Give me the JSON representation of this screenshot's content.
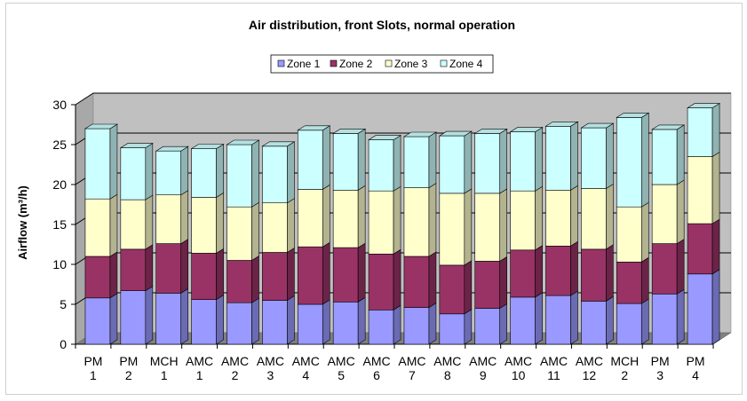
{
  "chart_data": {
    "type": "bar",
    "stacked": true,
    "style_3d": true,
    "title": "Air distribution, front Slots, normal operation",
    "ylabel": "Airflow (m³/h)",
    "xlabel": "",
    "ylim": [
      0,
      30
    ],
    "yticks": [
      0,
      5,
      10,
      15,
      20,
      25,
      30
    ],
    "grid": true,
    "legend_position": "top-center",
    "categories": [
      {
        "line1": "PM",
        "line2": "1"
      },
      {
        "line1": "PM",
        "line2": "2"
      },
      {
        "line1": "MCH",
        "line2": "1"
      },
      {
        "line1": "AMC",
        "line2": "1"
      },
      {
        "line1": "AMC",
        "line2": "2"
      },
      {
        "line1": "AMC",
        "line2": "3"
      },
      {
        "line1": "AMC",
        "line2": "4"
      },
      {
        "line1": "AMC",
        "line2": "5"
      },
      {
        "line1": "AMC",
        "line2": "6"
      },
      {
        "line1": "AMC",
        "line2": "7"
      },
      {
        "line1": "AMC",
        "line2": "8"
      },
      {
        "line1": "AMC",
        "line2": "9"
      },
      {
        "line1": "AMC",
        "line2": "10"
      },
      {
        "line1": "AMC",
        "line2": "11"
      },
      {
        "line1": "AMC",
        "line2": "12"
      },
      {
        "line1": "MCH",
        "line2": "2"
      },
      {
        "line1": "PM",
        "line2": "3"
      },
      {
        "line1": "PM",
        "line2": "4"
      }
    ],
    "series": [
      {
        "name": "Zone 1",
        "color": "#9999ff",
        "values": [
          5.8,
          6.7,
          6.4,
          5.6,
          5.2,
          5.5,
          5.0,
          5.3,
          4.3,
          4.6,
          3.8,
          4.5,
          5.9,
          6.1,
          5.4,
          5.1,
          6.3,
          8.8
        ]
      },
      {
        "name": "Zone 2",
        "color": "#993366",
        "values": [
          5.2,
          5.2,
          6.2,
          5.8,
          5.3,
          6.0,
          7.2,
          6.8,
          7.0,
          6.4,
          6.1,
          5.9,
          5.9,
          6.2,
          6.5,
          5.2,
          6.3,
          6.3
        ]
      },
      {
        "name": "Zone 3",
        "color": "#ffffcc",
        "values": [
          7.2,
          6.2,
          6.1,
          7.0,
          6.7,
          6.2,
          7.2,
          7.2,
          7.9,
          8.6,
          9.0,
          8.5,
          7.4,
          7.0,
          7.6,
          6.9,
          7.4,
          8.4
        ]
      },
      {
        "name": "Zone 4",
        "color": "#ccffff",
        "values": [
          8.8,
          6.5,
          5.5,
          6.1,
          7.8,
          7.1,
          7.4,
          7.1,
          6.4,
          6.4,
          7.2,
          7.5,
          7.4,
          8.0,
          7.6,
          11.2,
          6.9,
          6.1
        ]
      }
    ]
  }
}
